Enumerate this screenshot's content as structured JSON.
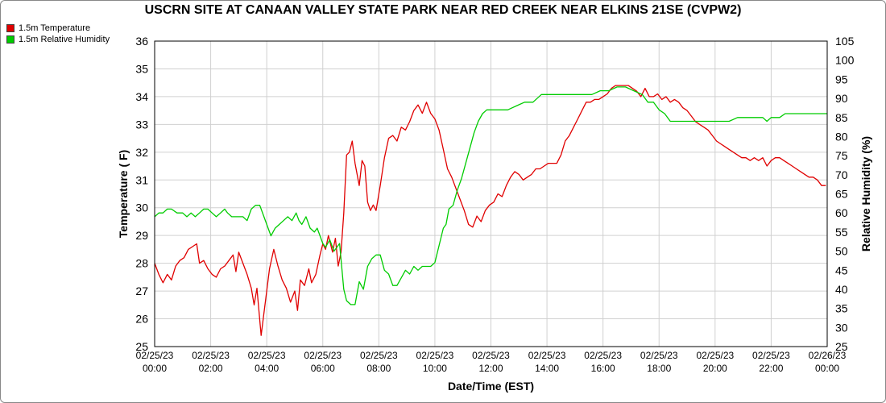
{
  "chart_data": {
    "type": "line",
    "title": "USCRN SITE AT CANAAN VALLEY STATE PARK NEAR RED CREEK NEAR ELKINS 21SE (CVPW2)",
    "xlabel": "Date/Time (EST)",
    "ylabel_left": "Temperature ( F)",
    "ylabel_right": "Relative Humidity (%)",
    "ylim_left": [
      25,
      36
    ],
    "ylim_right": [
      25,
      105
    ],
    "yticks_left": [
      25,
      26,
      27,
      28,
      29,
      30,
      31,
      32,
      33,
      34,
      35,
      36
    ],
    "yticks_right": [
      25,
      30,
      35,
      40,
      45,
      50,
      55,
      60,
      65,
      70,
      75,
      80,
      85,
      90,
      95,
      100,
      105
    ],
    "x_range_hours": [
      0,
      24
    ],
    "x_ticks": [
      {
        "hour": 0,
        "date": "02/25/23",
        "time": "00:00"
      },
      {
        "hour": 2,
        "date": "02/25/23",
        "time": "02:00"
      },
      {
        "hour": 4,
        "date": "02/25/23",
        "time": "04:00"
      },
      {
        "hour": 6,
        "date": "02/25/23",
        "time": "06:00"
      },
      {
        "hour": 8,
        "date": "02/25/23",
        "time": "08:00"
      },
      {
        "hour": 10,
        "date": "02/25/23",
        "time": "10:00"
      },
      {
        "hour": 12,
        "date": "02/25/23",
        "time": "12:00"
      },
      {
        "hour": 14,
        "date": "02/25/23",
        "time": "14:00"
      },
      {
        "hour": 16,
        "date": "02/25/23",
        "time": "16:00"
      },
      {
        "hour": 18,
        "date": "02/25/23",
        "time": "18:00"
      },
      {
        "hour": 20,
        "date": "02/25/23",
        "time": "20:00"
      },
      {
        "hour": 22,
        "date": "02/25/23",
        "time": "22:00"
      },
      {
        "hour": 24,
        "date": "02/26/23",
        "time": "00:00"
      }
    ],
    "grid": true,
    "legend_position": "top-left",
    "series": [
      {
        "name": "1.5m Temperature",
        "color": "#e00000",
        "axis": "left",
        "points": [
          [
            0.0,
            28.0
          ],
          [
            0.15,
            27.6
          ],
          [
            0.3,
            27.3
          ],
          [
            0.45,
            27.6
          ],
          [
            0.6,
            27.4
          ],
          [
            0.75,
            27.9
          ],
          [
            0.9,
            28.1
          ],
          [
            1.05,
            28.2
          ],
          [
            1.2,
            28.5
          ],
          [
            1.35,
            28.6
          ],
          [
            1.5,
            28.7
          ],
          [
            1.6,
            28.0
          ],
          [
            1.75,
            28.1
          ],
          [
            1.9,
            27.8
          ],
          [
            2.05,
            27.6
          ],
          [
            2.2,
            27.5
          ],
          [
            2.35,
            27.8
          ],
          [
            2.5,
            27.9
          ],
          [
            2.65,
            28.1
          ],
          [
            2.8,
            28.3
          ],
          [
            2.9,
            27.7
          ],
          [
            3.0,
            28.4
          ],
          [
            3.15,
            28.0
          ],
          [
            3.3,
            27.6
          ],
          [
            3.45,
            27.1
          ],
          [
            3.55,
            26.5
          ],
          [
            3.65,
            27.1
          ],
          [
            3.8,
            25.4
          ],
          [
            3.95,
            26.6
          ],
          [
            4.1,
            27.8
          ],
          [
            4.25,
            28.5
          ],
          [
            4.4,
            27.9
          ],
          [
            4.55,
            27.4
          ],
          [
            4.7,
            27.1
          ],
          [
            4.85,
            26.6
          ],
          [
            5.0,
            27.0
          ],
          [
            5.1,
            26.3
          ],
          [
            5.2,
            27.4
          ],
          [
            5.35,
            27.2
          ],
          [
            5.5,
            27.8
          ],
          [
            5.6,
            27.3
          ],
          [
            5.75,
            27.6
          ],
          [
            5.9,
            28.3
          ],
          [
            6.0,
            28.7
          ],
          [
            6.1,
            28.5
          ],
          [
            6.2,
            29.0
          ],
          [
            6.35,
            28.4
          ],
          [
            6.45,
            28.9
          ],
          [
            6.55,
            27.9
          ],
          [
            6.65,
            28.4
          ],
          [
            6.75,
            29.8
          ],
          [
            6.85,
            31.9
          ],
          [
            6.95,
            32.0
          ],
          [
            7.05,
            32.4
          ],
          [
            7.15,
            31.6
          ],
          [
            7.3,
            30.8
          ],
          [
            7.4,
            31.7
          ],
          [
            7.5,
            31.5
          ],
          [
            7.6,
            30.2
          ],
          [
            7.7,
            29.9
          ],
          [
            7.8,
            30.1
          ],
          [
            7.9,
            29.9
          ],
          [
            8.05,
            30.8
          ],
          [
            8.2,
            31.8
          ],
          [
            8.35,
            32.5
          ],
          [
            8.5,
            32.6
          ],
          [
            8.65,
            32.4
          ],
          [
            8.8,
            32.9
          ],
          [
            8.95,
            32.8
          ],
          [
            9.1,
            33.1
          ],
          [
            9.25,
            33.5
          ],
          [
            9.4,
            33.7
          ],
          [
            9.55,
            33.4
          ],
          [
            9.7,
            33.8
          ],
          [
            9.85,
            33.4
          ],
          [
            10.0,
            33.2
          ],
          [
            10.15,
            32.8
          ],
          [
            10.3,
            32.1
          ],
          [
            10.45,
            31.4
          ],
          [
            10.6,
            31.1
          ],
          [
            10.75,
            30.7
          ],
          [
            10.9,
            30.3
          ],
          [
            11.05,
            29.9
          ],
          [
            11.2,
            29.4
          ],
          [
            11.35,
            29.3
          ],
          [
            11.5,
            29.7
          ],
          [
            11.65,
            29.5
          ],
          [
            11.8,
            29.9
          ],
          [
            11.95,
            30.1
          ],
          [
            12.1,
            30.2
          ],
          [
            12.25,
            30.5
          ],
          [
            12.4,
            30.4
          ],
          [
            12.55,
            30.8
          ],
          [
            12.7,
            31.1
          ],
          [
            12.85,
            31.3
          ],
          [
            13.0,
            31.2
          ],
          [
            13.15,
            31.0
          ],
          [
            13.3,
            31.1
          ],
          [
            13.45,
            31.2
          ],
          [
            13.6,
            31.4
          ],
          [
            13.75,
            31.4
          ],
          [
            13.9,
            31.5
          ],
          [
            14.05,
            31.6
          ],
          [
            14.2,
            31.6
          ],
          [
            14.35,
            31.6
          ],
          [
            14.5,
            31.9
          ],
          [
            14.65,
            32.4
          ],
          [
            14.8,
            32.6
          ],
          [
            14.95,
            32.9
          ],
          [
            15.1,
            33.2
          ],
          [
            15.25,
            33.5
          ],
          [
            15.4,
            33.8
          ],
          [
            15.55,
            33.8
          ],
          [
            15.7,
            33.9
          ],
          [
            15.85,
            33.9
          ],
          [
            16.0,
            34.0
          ],
          [
            16.15,
            34.1
          ],
          [
            16.3,
            34.3
          ],
          [
            16.45,
            34.4
          ],
          [
            16.6,
            34.4
          ],
          [
            16.75,
            34.4
          ],
          [
            16.9,
            34.4
          ],
          [
            17.05,
            34.3
          ],
          [
            17.2,
            34.2
          ],
          [
            17.35,
            34.0
          ],
          [
            17.5,
            34.3
          ],
          [
            17.65,
            34.0
          ],
          [
            17.8,
            34.0
          ],
          [
            17.95,
            34.1
          ],
          [
            18.1,
            33.9
          ],
          [
            18.25,
            34.0
          ],
          [
            18.4,
            33.8
          ],
          [
            18.55,
            33.9
          ],
          [
            18.7,
            33.8
          ],
          [
            18.85,
            33.6
          ],
          [
            19.0,
            33.5
          ],
          [
            19.15,
            33.3
          ],
          [
            19.3,
            33.1
          ],
          [
            19.45,
            33.0
          ],
          [
            19.6,
            32.9
          ],
          [
            19.75,
            32.8
          ],
          [
            19.9,
            32.6
          ],
          [
            20.05,
            32.4
          ],
          [
            20.2,
            32.3
          ],
          [
            20.35,
            32.2
          ],
          [
            20.5,
            32.1
          ],
          [
            20.65,
            32.0
          ],
          [
            20.8,
            31.9
          ],
          [
            20.95,
            31.8
          ],
          [
            21.1,
            31.8
          ],
          [
            21.25,
            31.7
          ],
          [
            21.4,
            31.8
          ],
          [
            21.55,
            31.7
          ],
          [
            21.7,
            31.8
          ],
          [
            21.85,
            31.5
          ],
          [
            22.0,
            31.7
          ],
          [
            22.15,
            31.8
          ],
          [
            22.3,
            31.8
          ],
          [
            22.45,
            31.7
          ],
          [
            22.6,
            31.6
          ],
          [
            22.75,
            31.5
          ],
          [
            22.9,
            31.4
          ],
          [
            23.05,
            31.3
          ],
          [
            23.2,
            31.2
          ],
          [
            23.35,
            31.1
          ],
          [
            23.5,
            31.1
          ],
          [
            23.65,
            31.0
          ],
          [
            23.8,
            30.8
          ],
          [
            23.95,
            30.8
          ]
        ]
      },
      {
        "name": "1.5m Relative Humidity",
        "color": "#00cc00",
        "axis": "right",
        "points": [
          [
            0.0,
            59
          ],
          [
            0.15,
            60
          ],
          [
            0.3,
            60
          ],
          [
            0.45,
            61
          ],
          [
            0.6,
            61
          ],
          [
            0.8,
            60
          ],
          [
            1.0,
            60
          ],
          [
            1.15,
            59
          ],
          [
            1.3,
            60
          ],
          [
            1.45,
            59
          ],
          [
            1.6,
            60
          ],
          [
            1.75,
            61
          ],
          [
            1.9,
            61
          ],
          [
            2.05,
            60
          ],
          [
            2.2,
            59
          ],
          [
            2.35,
            60
          ],
          [
            2.5,
            61
          ],
          [
            2.6,
            60
          ],
          [
            2.75,
            59
          ],
          [
            3.0,
            59
          ],
          [
            3.15,
            59
          ],
          [
            3.3,
            58
          ],
          [
            3.45,
            61
          ],
          [
            3.6,
            62
          ],
          [
            3.75,
            62
          ],
          [
            3.9,
            59
          ],
          [
            4.05,
            56
          ],
          [
            4.15,
            54
          ],
          [
            4.3,
            56
          ],
          [
            4.45,
            57
          ],
          [
            4.6,
            58
          ],
          [
            4.75,
            59
          ],
          [
            4.9,
            58
          ],
          [
            5.05,
            60
          ],
          [
            5.15,
            58
          ],
          [
            5.25,
            57
          ],
          [
            5.4,
            59
          ],
          [
            5.55,
            56
          ],
          [
            5.7,
            55
          ],
          [
            5.8,
            56
          ],
          [
            5.9,
            54
          ],
          [
            6.0,
            52
          ],
          [
            6.1,
            51
          ],
          [
            6.25,
            53
          ],
          [
            6.4,
            50
          ],
          [
            6.6,
            52
          ],
          [
            6.75,
            40
          ],
          [
            6.85,
            37
          ],
          [
            7.0,
            36
          ],
          [
            7.15,
            36
          ],
          [
            7.3,
            42
          ],
          [
            7.45,
            40
          ],
          [
            7.6,
            46
          ],
          [
            7.75,
            48
          ],
          [
            7.9,
            49
          ],
          [
            8.05,
            49
          ],
          [
            8.2,
            45
          ],
          [
            8.35,
            44
          ],
          [
            8.5,
            41
          ],
          [
            8.65,
            41
          ],
          [
            8.8,
            43
          ],
          [
            8.95,
            45
          ],
          [
            9.1,
            44
          ],
          [
            9.25,
            46
          ],
          [
            9.4,
            45
          ],
          [
            9.55,
            46
          ],
          [
            9.7,
            46
          ],
          [
            9.85,
            46
          ],
          [
            10.0,
            47
          ],
          [
            10.1,
            50
          ],
          [
            10.2,
            53
          ],
          [
            10.3,
            56
          ],
          [
            10.4,
            57
          ],
          [
            10.5,
            61
          ],
          [
            10.65,
            62
          ],
          [
            10.8,
            66
          ],
          [
            10.95,
            69
          ],
          [
            11.1,
            73
          ],
          [
            11.25,
            77
          ],
          [
            11.4,
            81
          ],
          [
            11.55,
            84
          ],
          [
            11.7,
            86
          ],
          [
            11.85,
            87
          ],
          [
            12.0,
            87
          ],
          [
            12.3,
            87
          ],
          [
            12.6,
            87
          ],
          [
            12.9,
            88
          ],
          [
            13.2,
            89
          ],
          [
            13.5,
            89
          ],
          [
            13.8,
            91
          ],
          [
            14.1,
            91
          ],
          [
            14.4,
            91
          ],
          [
            14.7,
            91
          ],
          [
            15.0,
            91
          ],
          [
            15.3,
            91
          ],
          [
            15.6,
            91
          ],
          [
            15.9,
            92
          ],
          [
            16.2,
            92
          ],
          [
            16.5,
            93
          ],
          [
            16.8,
            93
          ],
          [
            17.1,
            92
          ],
          [
            17.4,
            91
          ],
          [
            17.6,
            89
          ],
          [
            17.8,
            89
          ],
          [
            18.0,
            87
          ],
          [
            18.2,
            86
          ],
          [
            18.4,
            84
          ],
          [
            18.7,
            84
          ],
          [
            19.0,
            84
          ],
          [
            19.3,
            84
          ],
          [
            19.6,
            84
          ],
          [
            19.9,
            84
          ],
          [
            20.2,
            84
          ],
          [
            20.5,
            84
          ],
          [
            20.8,
            85
          ],
          [
            21.1,
            85
          ],
          [
            21.4,
            85
          ],
          [
            21.7,
            85
          ],
          [
            21.85,
            84
          ],
          [
            22.0,
            85
          ],
          [
            22.3,
            85
          ],
          [
            22.5,
            86
          ],
          [
            22.8,
            86
          ],
          [
            23.1,
            86
          ],
          [
            23.4,
            86
          ],
          [
            23.7,
            86
          ],
          [
            24.0,
            86
          ]
        ]
      }
    ]
  }
}
